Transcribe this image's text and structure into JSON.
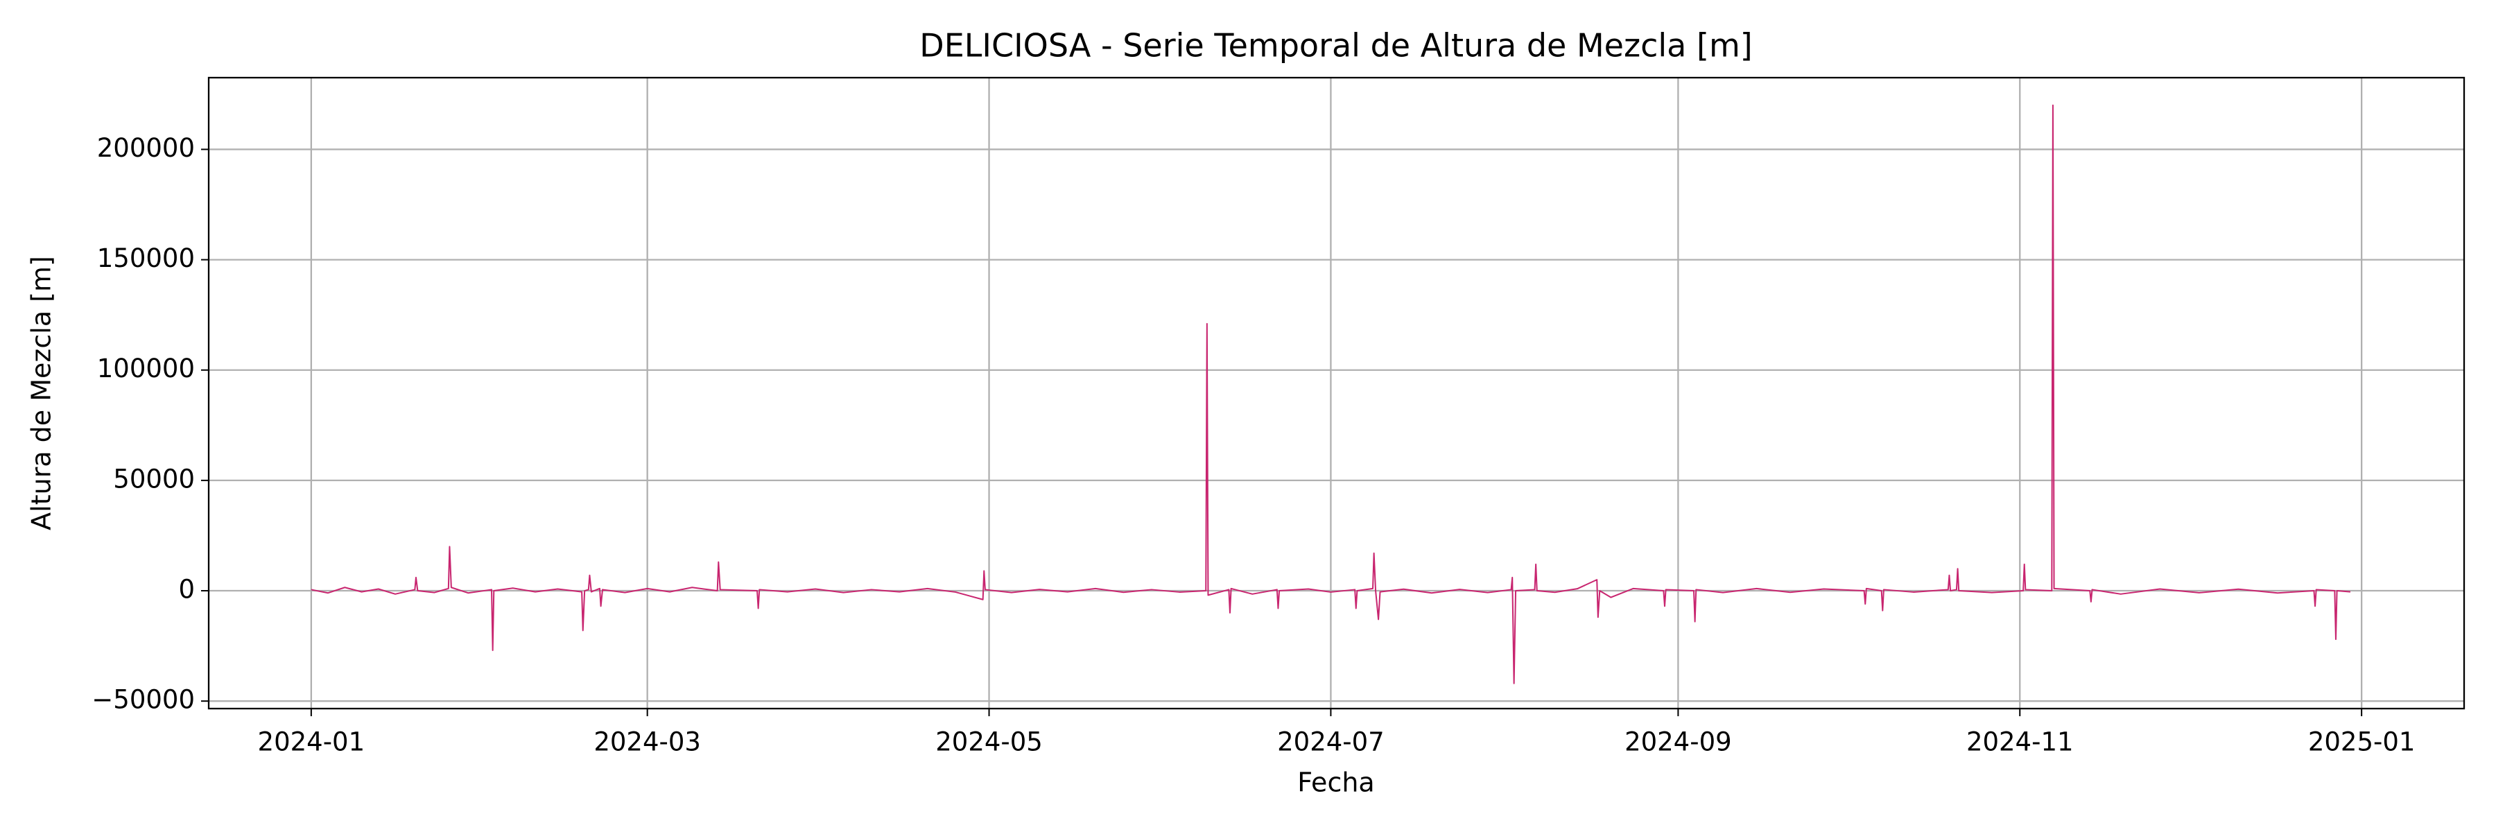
{
  "chart_data": {
    "type": "line",
    "title": "DELICIOSA - Serie Temporal de Altura de Mezcla [m]",
    "x_label": "Fecha",
    "y_label": "Altura de Mezcla [m]",
    "grid": true,
    "xlim": [
      -18.3,
      384.3
    ],
    "xticks": [
      {
        "value": 0,
        "label": "2024-01"
      },
      {
        "value": 60,
        "label": "2024-03"
      },
      {
        "value": 121,
        "label": "2024-05"
      },
      {
        "value": 182,
        "label": "2024-07"
      },
      {
        "value": 244,
        "label": "2024-09"
      },
      {
        "value": 305,
        "label": "2024-11"
      },
      {
        "value": 366,
        "label": "2025-01"
      }
    ],
    "ylim": [
      -53400,
      232500
    ],
    "yticks": [
      {
        "value": -50000,
        "label": "−50000"
      },
      0,
      50000,
      100000,
      150000,
      200000
    ],
    "x": [
      0,
      3,
      6,
      9,
      12,
      15,
      18.5,
      18.7,
      19,
      22,
      24.5,
      24.7,
      25,
      28,
      32.2,
      32.4,
      32.6,
      36,
      40,
      44,
      48.3,
      48.5,
      48.8,
      49.5,
      49.7,
      50,
      51.5,
      51.7,
      52,
      56,
      60,
      64,
      68,
      72.5,
      72.7,
      73,
      79.6,
      79.8,
      80,
      85,
      90,
      95,
      100,
      105,
      110,
      115,
      119.9,
      120.1,
      120.3,
      125,
      130,
      135,
      140,
      145,
      150,
      155,
      159.7,
      159.9,
      160.1,
      163.8,
      164,
      164.2,
      168,
      172.4,
      172.6,
      172.8,
      178,
      182,
      186.3,
      186.5,
      186.7,
      189.5,
      189.7,
      190,
      190.5,
      190.8,
      195,
      200,
      205,
      210,
      214.2,
      214.4,
      214.7,
      215,
      218.4,
      218.6,
      218.8,
      222,
      226,
      229.5,
      229.7,
      230,
      232,
      236,
      241.4,
      241.6,
      241.8,
      246.8,
      247,
      247.2,
      252,
      258,
      264,
      270,
      277.2,
      277.4,
      277.6,
      280.3,
      280.5,
      280.7,
      286,
      292.2,
      292.4,
      292.6,
      293.7,
      293.9,
      294.1,
      300,
      305.6,
      305.8,
      306,
      310.7,
      310.9,
      311.1,
      317.5,
      317.7,
      317.9,
      323,
      330,
      337,
      344,
      351,
      357.5,
      357.7,
      357.9,
      361.2,
      361.4,
      361.6,
      364
    ],
    "series": [
      {
        "color": "#c8256f",
        "values": [
          500,
          -1000,
          1500,
          -500,
          800,
          -1500,
          500,
          6000,
          0,
          -800,
          1000,
          20000,
          1500,
          -1000,
          500,
          -27000,
          0,
          1200,
          -500,
          800,
          -500,
          -18000,
          0,
          500,
          7000,
          -500,
          1000,
          -7000,
          500,
          -800,
          1000,
          -500,
          1500,
          0,
          13000,
          500,
          0,
          -8000,
          500,
          -500,
          800,
          -800,
          500,
          -500,
          1000,
          -600,
          -4000,
          9000,
          500,
          -800,
          600,
          -500,
          1000,
          -700,
          500,
          -600,
          0,
          121000,
          -2000,
          500,
          -10000,
          1000,
          -1500,
          500,
          -8000,
          0,
          800,
          -600,
          500,
          -8000,
          0,
          1000,
          17000,
          0,
          -13000,
          -500,
          700,
          -1000,
          600,
          -800,
          500,
          6000,
          -42000,
          0,
          500,
          12000,
          0,
          -700,
          900,
          5000,
          -12000,
          0,
          -3000,
          1000,
          0,
          -7000,
          500,
          0,
          -14000,
          500,
          -800,
          1000,
          -700,
          800,
          0,
          -6000,
          1000,
          0,
          -9000,
          500,
          -600,
          500,
          7000,
          0,
          500,
          10000,
          0,
          -800,
          0,
          12000,
          500,
          0,
          220000,
          1000,
          0,
          -5000,
          500,
          -1500,
          800,
          -900,
          700,
          -1000,
          0,
          -7000,
          500,
          0,
          -22000,
          0,
          -500
        ]
      }
    ]
  }
}
